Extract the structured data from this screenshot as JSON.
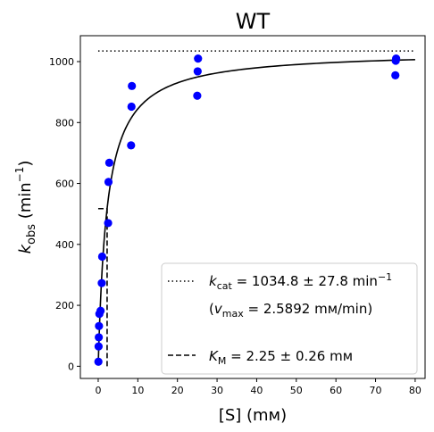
{
  "chart_data": {
    "type": "scatter",
    "title": "WT",
    "xlabel": "[S] (mᴍ)",
    "ylabel_main": "k",
    "ylabel_sub": "obs",
    "ylabel_unit_pre": " (min",
    "ylabel_unit_sup": "−1",
    "ylabel_unit_post": ")",
    "xlim": [
      -4.5,
      82.5
    ],
    "ylim": [
      -40,
      1085
    ],
    "xticks": [
      0,
      10,
      20,
      30,
      40,
      50,
      60,
      70,
      80
    ],
    "yticks": [
      0,
      200,
      400,
      600,
      800,
      1000
    ],
    "grid": false,
    "legend_position": "bottom-right",
    "series": [
      {
        "name": "data",
        "color": "#0000ff",
        "marker": "circle",
        "points": [
          [
            0.05,
            15
          ],
          [
            0.1,
            65
          ],
          [
            0.15,
            95
          ],
          [
            0.2,
            132
          ],
          [
            0.3,
            172
          ],
          [
            0.6,
            182
          ],
          [
            0.9,
            273
          ],
          [
            1.0,
            360
          ],
          [
            2.5,
            470
          ],
          [
            2.6,
            605
          ],
          [
            2.8,
            668
          ],
          [
            8.3,
            725
          ],
          [
            8.4,
            852
          ],
          [
            8.5,
            920
          ],
          [
            25,
            888
          ],
          [
            25.1,
            968
          ],
          [
            25.2,
            1010
          ],
          [
            75,
            955
          ],
          [
            75.1,
            1003
          ],
          [
            75.2,
            1010
          ]
        ]
      },
      {
        "name": "Michaelis-Menten fit",
        "color": "#000000",
        "style": "solid",
        "kcat": 1034.8,
        "km": 2.25,
        "x_range": [
          0.02,
          80
        ]
      }
    ],
    "reference_lines": [
      {
        "kind": "kcat",
        "orientation": "horizontal",
        "y": 1034.8,
        "x_range": [
          0,
          80
        ],
        "style": "dotted"
      },
      {
        "kind": "km",
        "orientation": "vertical",
        "x": 2.25,
        "y_range": [
          0,
          517.4
        ],
        "style": "dashed"
      },
      {
        "kind": "half_vmax",
        "orientation": "horizontal",
        "y": 517.4,
        "x_range": [
          0,
          2.25
        ],
        "style": "dashed"
      }
    ],
    "legend": {
      "kcat_sym": "k",
      "kcat_sub": "cat",
      "kcat_text": " = 1034.8 ± 27.8 min",
      "kcat_sup": "−1",
      "vmax_open": "(",
      "vmax_sym": "v",
      "vmax_sub": "max",
      "vmax_text": " = 2.5892 mᴍ/min)",
      "km_sym": "K",
      "km_sub": "M",
      "km_text": " = 2.25 ± 0.26 mᴍ"
    }
  }
}
